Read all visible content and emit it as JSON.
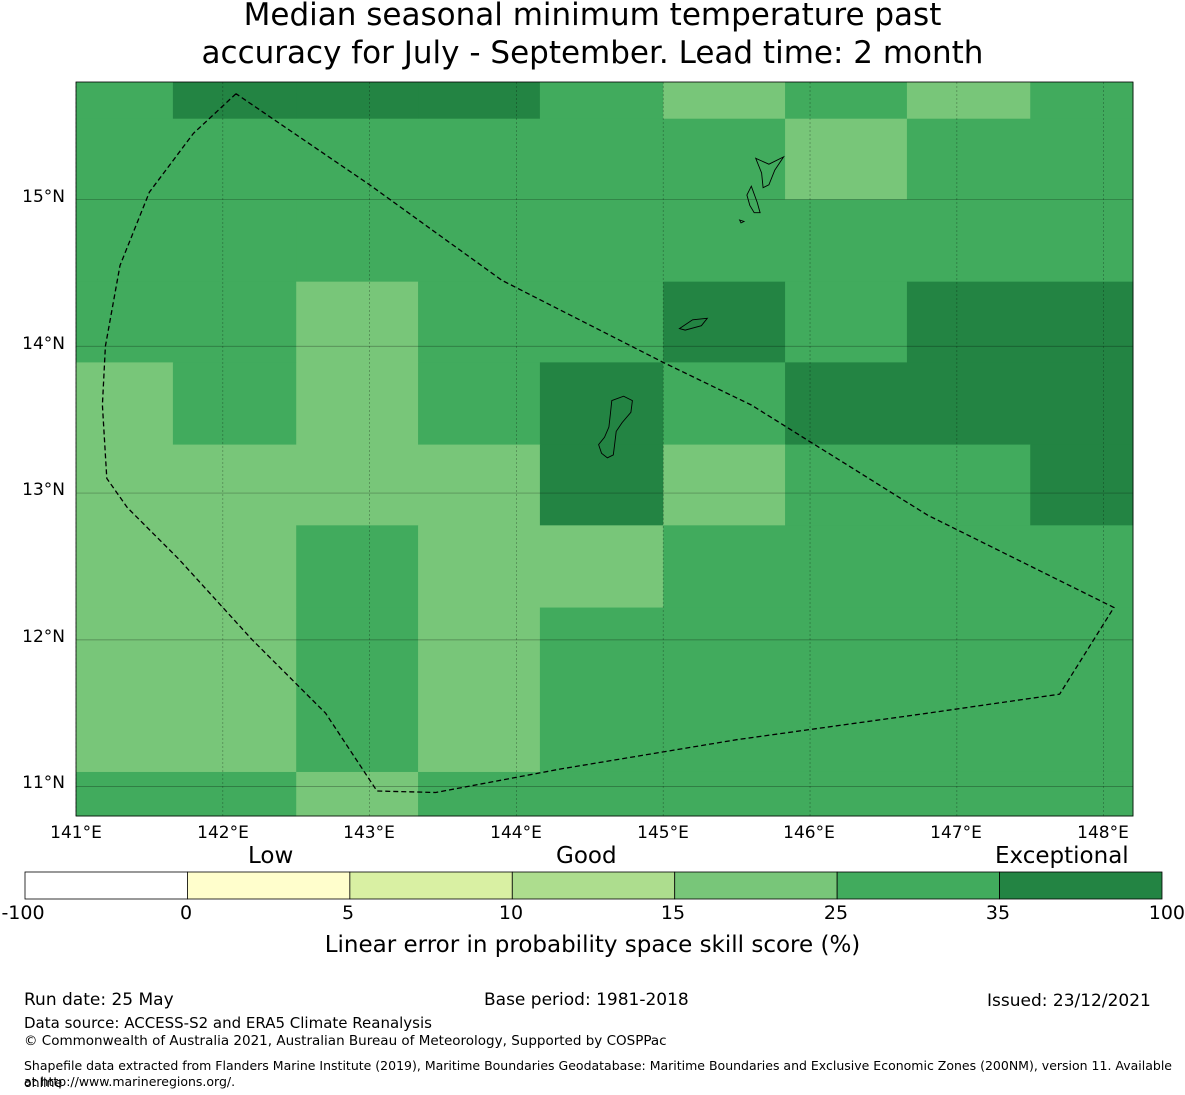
{
  "title_line1": "Median seasonal minimum temperature past",
  "title_line2": "accuracy for July - September. Lead time: 2 month",
  "map": {
    "lon_min": 141.0,
    "lon_max": 148.2,
    "lat_min": 10.8,
    "lat_max": 15.8,
    "lat_labels": [
      "15°N",
      "14°N",
      "13°N",
      "12°N",
      "11°N"
    ],
    "lon_labels": [
      "141°E",
      "142°E",
      "143°E",
      "144°E",
      "145°E",
      "146°E",
      "147°E",
      "148°E"
    ],
    "cells": [
      {
        "lon0": 141.0,
        "lon1": 141.66,
        "lat0": 15.55,
        "lat1": 15.8,
        "cat": 5
      },
      {
        "lon0": 141.66,
        "lon1": 142.5,
        "lat0": 15.55,
        "lat1": 15.8,
        "cat": 6
      },
      {
        "lon0": 142.5,
        "lon1": 143.33,
        "lat0": 15.55,
        "lat1": 15.8,
        "cat": 6
      },
      {
        "lon0": 143.33,
        "lon1": 144.16,
        "lat0": 15.55,
        "lat1": 15.8,
        "cat": 6
      },
      {
        "lon0": 144.16,
        "lon1": 145.0,
        "lat0": 15.55,
        "lat1": 15.8,
        "cat": 5
      },
      {
        "lon0": 145.0,
        "lon1": 145.83,
        "lat0": 15.55,
        "lat1": 15.8,
        "cat": 4
      },
      {
        "lon0": 145.83,
        "lon1": 146.66,
        "lat0": 15.55,
        "lat1": 15.8,
        "cat": 5
      },
      {
        "lon0": 146.66,
        "lon1": 147.5,
        "lat0": 15.55,
        "lat1": 15.8,
        "cat": 4
      },
      {
        "lon0": 147.5,
        "lon1": 148.2,
        "lat0": 15.55,
        "lat1": 15.8,
        "cat": 5
      },
      {
        "lon0": 141.0,
        "lon1": 145.83,
        "lat0": 15.0,
        "lat1": 15.55,
        "cat": 5
      },
      {
        "lon0": 145.83,
        "lon1": 146.66,
        "lat0": 15.0,
        "lat1": 15.55,
        "cat": 4
      },
      {
        "lon0": 146.66,
        "lon1": 148.2,
        "lat0": 15.0,
        "lat1": 15.55,
        "cat": 5
      },
      {
        "lon0": 141.0,
        "lon1": 142.5,
        "lat0": 14.44,
        "lat1": 15.0,
        "cat": 5
      },
      {
        "lon0": 142.5,
        "lon1": 148.2,
        "lat0": 14.44,
        "lat1": 15.0,
        "cat": 5
      },
      {
        "lon0": 141.0,
        "lon1": 141.66,
        "lat0": 13.89,
        "lat1": 14.44,
        "cat": 5
      },
      {
        "lon0": 141.66,
        "lon1": 142.5,
        "lat0": 13.89,
        "lat1": 14.44,
        "cat": 5
      },
      {
        "lon0": 142.5,
        "lon1": 143.33,
        "lat0": 13.89,
        "lat1": 14.44,
        "cat": 4
      },
      {
        "lon0": 143.33,
        "lon1": 145.0,
        "lat0": 13.89,
        "lat1": 14.44,
        "cat": 5
      },
      {
        "lon0": 145.0,
        "lon1": 145.83,
        "lat0": 13.89,
        "lat1": 14.44,
        "cat": 6
      },
      {
        "lon0": 145.83,
        "lon1": 146.66,
        "lat0": 13.89,
        "lat1": 14.44,
        "cat": 5
      },
      {
        "lon0": 146.66,
        "lon1": 148.2,
        "lat0": 13.89,
        "lat1": 14.44,
        "cat": 6
      },
      {
        "lon0": 141.0,
        "lon1": 141.66,
        "lat0": 13.33,
        "lat1": 13.89,
        "cat": 4
      },
      {
        "lon0": 141.66,
        "lon1": 142.5,
        "lat0": 13.33,
        "lat1": 13.89,
        "cat": 5
      },
      {
        "lon0": 142.5,
        "lon1": 143.33,
        "lat0": 13.33,
        "lat1": 13.89,
        "cat": 4
      },
      {
        "lon0": 143.33,
        "lon1": 144.16,
        "lat0": 13.33,
        "lat1": 13.89,
        "cat": 5
      },
      {
        "lon0": 144.16,
        "lon1": 145.0,
        "lat0": 13.33,
        "lat1": 13.89,
        "cat": 6
      },
      {
        "lon0": 145.0,
        "lon1": 145.83,
        "lat0": 13.33,
        "lat1": 13.89,
        "cat": 5
      },
      {
        "lon0": 145.83,
        "lon1": 148.2,
        "lat0": 13.33,
        "lat1": 13.89,
        "cat": 6
      },
      {
        "lon0": 141.0,
        "lon1": 144.16,
        "lat0": 12.78,
        "lat1": 13.33,
        "cat": 4
      },
      {
        "lon0": 144.16,
        "lon1": 145.0,
        "lat0": 12.78,
        "lat1": 13.33,
        "cat": 6
      },
      {
        "lon0": 145.0,
        "lon1": 145.83,
        "lat0": 12.78,
        "lat1": 13.33,
        "cat": 4
      },
      {
        "lon0": 145.83,
        "lon1": 147.5,
        "lat0": 12.78,
        "lat1": 13.33,
        "cat": 5
      },
      {
        "lon0": 147.5,
        "lon1": 148.2,
        "lat0": 12.78,
        "lat1": 13.33,
        "cat": 6
      },
      {
        "lon0": 141.0,
        "lon1": 142.5,
        "lat0": 12.22,
        "lat1": 12.78,
        "cat": 4
      },
      {
        "lon0": 142.5,
        "lon1": 143.33,
        "lat0": 12.22,
        "lat1": 12.78,
        "cat": 5
      },
      {
        "lon0": 143.33,
        "lon1": 145.0,
        "lat0": 12.22,
        "lat1": 12.78,
        "cat": 4
      },
      {
        "lon0": 145.0,
        "lon1": 148.2,
        "lat0": 12.22,
        "lat1": 12.78,
        "cat": 5
      },
      {
        "lon0": 141.0,
        "lon1": 142.5,
        "lat0": 11.1,
        "lat1": 12.22,
        "cat": 4
      },
      {
        "lon0": 142.5,
        "lon1": 143.33,
        "lat0": 11.1,
        "lat1": 12.22,
        "cat": 5
      },
      {
        "lon0": 143.33,
        "lon1": 144.16,
        "lat0": 11.1,
        "lat1": 12.22,
        "cat": 4
      },
      {
        "lon0": 144.16,
        "lon1": 148.2,
        "lat0": 11.1,
        "lat1": 12.22,
        "cat": 5
      },
      {
        "lon0": 141.0,
        "lon1": 142.5,
        "lat0": 10.8,
        "lat1": 11.1,
        "cat": 5
      },
      {
        "lon0": 142.5,
        "lon1": 143.33,
        "lat0": 10.8,
        "lat1": 11.1,
        "cat": 4
      },
      {
        "lon0": 143.33,
        "lon1": 148.2,
        "lat0": 10.8,
        "lat1": 11.1,
        "cat": 5
      }
    ],
    "eez_boundary": [
      [
        142.09,
        15.72
      ],
      [
        141.8,
        15.45
      ],
      [
        141.5,
        15.05
      ],
      [
        141.3,
        14.55
      ],
      [
        141.2,
        14.0
      ],
      [
        141.18,
        13.6
      ],
      [
        141.21,
        13.1
      ],
      [
        141.35,
        12.9
      ],
      [
        141.7,
        12.55
      ],
      [
        142.2,
        12.0
      ],
      [
        142.7,
        11.5
      ],
      [
        143.05,
        10.97
      ],
      [
        143.45,
        10.96
      ],
      [
        144.3,
        11.12
      ],
      [
        145.5,
        11.32
      ],
      [
        146.8,
        11.5
      ],
      [
        147.7,
        11.63
      ],
      [
        148.07,
        12.22
      ],
      [
        146.8,
        12.85
      ],
      [
        145.6,
        13.6
      ],
      [
        145.0,
        13.89
      ],
      [
        143.9,
        14.45
      ],
      [
        143.0,
        15.1
      ],
      [
        142.09,
        15.72
      ]
    ],
    "islands": [
      [
        [
          144.65,
          13.63
        ],
        [
          144.73,
          13.66
        ],
        [
          144.79,
          13.63
        ],
        [
          144.78,
          13.55
        ],
        [
          144.72,
          13.48
        ],
        [
          144.68,
          13.42
        ],
        [
          144.67,
          13.34
        ],
        [
          144.66,
          13.26
        ],
        [
          144.62,
          13.24
        ],
        [
          144.58,
          13.27
        ],
        [
          144.56,
          13.33
        ],
        [
          144.6,
          13.38
        ],
        [
          144.63,
          13.45
        ],
        [
          144.64,
          13.54
        ],
        [
          144.65,
          13.63
        ]
      ],
      [
        [
          145.11,
          14.12
        ],
        [
          145.2,
          14.18
        ],
        [
          145.3,
          14.19
        ],
        [
          145.26,
          14.14
        ],
        [
          145.15,
          14.11
        ],
        [
          145.11,
          14.12
        ]
      ],
      [
        [
          145.63,
          15.28
        ],
        [
          145.72,
          15.24
        ],
        [
          145.82,
          15.29
        ],
        [
          145.76,
          15.2
        ],
        [
          145.72,
          15.1
        ],
        [
          145.68,
          15.08
        ],
        [
          145.67,
          15.18
        ],
        [
          145.63,
          15.28
        ]
      ],
      [
        [
          145.6,
          15.09
        ],
        [
          145.64,
          14.98
        ],
        [
          145.66,
          14.91
        ],
        [
          145.62,
          14.91
        ],
        [
          145.59,
          14.96
        ],
        [
          145.57,
          15.03
        ],
        [
          145.6,
          15.09
        ]
      ],
      [
        [
          145.52,
          14.86
        ],
        [
          145.55,
          14.85
        ],
        [
          145.53,
          14.84
        ],
        [
          145.52,
          14.86
        ]
      ]
    ]
  },
  "colorbar": {
    "ticks": [
      "-100",
      "0",
      "5",
      "10",
      "15",
      "25",
      "35",
      "100"
    ],
    "colors": [
      "#ffffff",
      "#fffecc",
      "#d9f0a3",
      "#addd8e",
      "#78c679",
      "#41ab5d",
      "#238443"
    ],
    "low_label": "Low",
    "good_label": "Good",
    "exceptional_label": "Exceptional",
    "axis_label": "Linear error in probability space skill score (%)"
  },
  "footer": {
    "run_date": "Run date: 25 May",
    "base_period": "Base period: 1981-2018",
    "issued": "Issued: 23/12/2021",
    "data_source": "Data source: ACCESS-S2 and ERA5 Climate Reanalysis",
    "copyright": "© Commonwealth of Australia 2021, Australian Bureau of Meteorology, Supported by COSPPac",
    "shapefile_line1": "Shapefile data extracted from Flanders Marine Institute (2019), Maritime Boundaries Geodatabase: Maritime Boundaries and Exclusive Economic Zones (200NM), version 11. Available online",
    "shapefile_line2": "at http://www.marineregions.org/."
  }
}
